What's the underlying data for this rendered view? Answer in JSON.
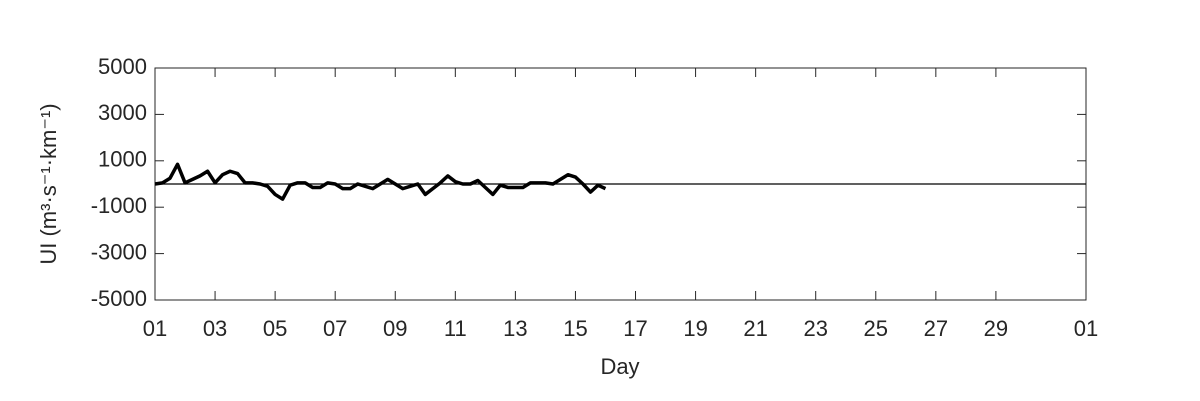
{
  "chart_data": {
    "type": "line",
    "xlabel": "Day",
    "ylabel": "UI (m³·s⁻¹·km⁻¹)",
    "x": [
      1.0,
      1.25,
      1.5,
      1.75,
      2.0,
      2.25,
      2.5,
      2.75,
      3.0,
      3.25,
      3.5,
      3.75,
      4.0,
      4.25,
      4.5,
      4.75,
      5.0,
      5.25,
      5.5,
      5.75,
      6.0,
      6.25,
      6.5,
      6.75,
      7.0,
      7.25,
      7.5,
      7.75,
      8.0,
      8.25,
      8.5,
      8.75,
      9.0,
      9.25,
      9.5,
      9.75,
      10.0,
      10.25,
      10.5,
      10.75,
      11.0,
      11.25,
      11.5,
      11.75,
      12.0,
      12.25,
      12.5,
      12.75,
      13.0,
      13.25,
      13.5,
      13.75,
      14.0,
      14.25,
      14.5,
      14.75,
      15.0,
      15.25,
      15.5,
      15.75,
      16.0
    ],
    "series": [
      {
        "color": "#000000",
        "values": [
          0,
          50,
          250,
          850,
          50,
          200,
          350,
          550,
          50,
          400,
          550,
          450,
          50,
          50,
          0,
          -100,
          -450,
          -650,
          -50,
          50,
          50,
          -150,
          -150,
          50,
          0,
          -200,
          -200,
          0,
          -100,
          -200,
          0,
          200,
          0,
          -200,
          -100,
          0,
          -450,
          -200,
          50,
          350,
          100,
          0,
          0,
          150,
          -150,
          -450,
          -50,
          -150,
          -150,
          -150,
          50,
          50,
          50,
          0,
          200,
          400,
          300,
          0,
          -350,
          -50,
          -200
        ]
      }
    ],
    "zero_line": 0,
    "xlim": [
      1,
      32
    ],
    "xticks": [
      {
        "value": 1,
        "label": "01"
      },
      {
        "value": 3,
        "label": "03"
      },
      {
        "value": 5,
        "label": "05"
      },
      {
        "value": 7,
        "label": "07"
      },
      {
        "value": 9,
        "label": "09"
      },
      11,
      13,
      15,
      17,
      19,
      21,
      23,
      25,
      27,
      29,
      {
        "value": 32,
        "label": "01"
      }
    ],
    "ylim": [
      -5000,
      5000
    ],
    "yticks": [
      -5000,
      -3000,
      -1000,
      1000,
      3000,
      5000
    ],
    "grid": false
  }
}
